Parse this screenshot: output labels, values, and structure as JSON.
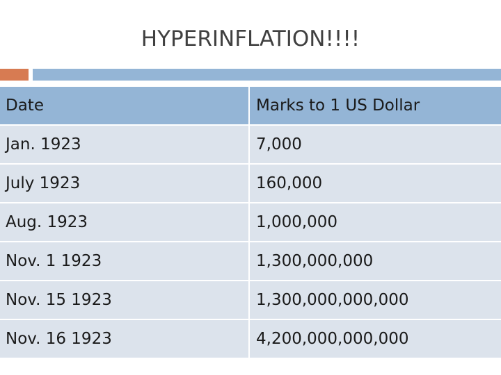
{
  "slide": {
    "title": "HYPERINFLATION!!!!"
  },
  "colors": {
    "accent_orange": "#d77b52",
    "accent_blue": "#94b5d6",
    "header_bg": "#94b5d6",
    "row_bg": "#dce3ec"
  },
  "table": {
    "headers": [
      "Date",
      "Marks to 1 US Dollar"
    ],
    "rows": [
      [
        "Jan. 1923",
        "7,000"
      ],
      [
        "July 1923",
        "160,000"
      ],
      [
        "Aug. 1923",
        "1,000,000"
      ],
      [
        "Nov. 1 1923",
        "1,300,000,000"
      ],
      [
        "Nov. 15 1923",
        "1,300,000,000,000"
      ],
      [
        "Nov. 16 1923",
        "4,200,000,000,000"
      ]
    ]
  }
}
